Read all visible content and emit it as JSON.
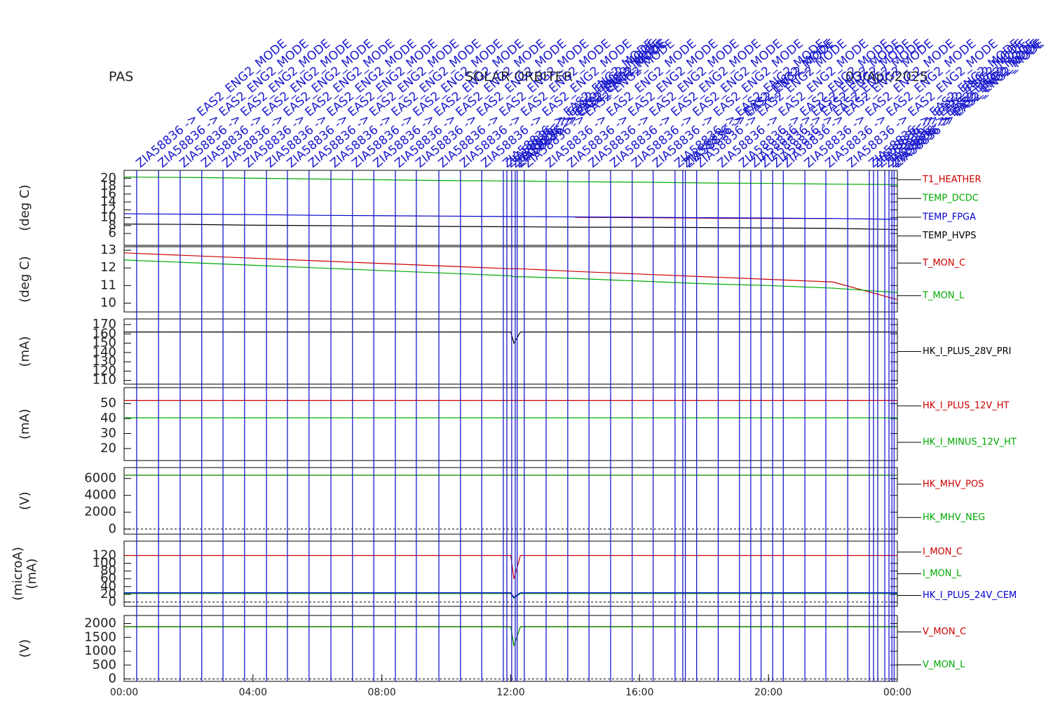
{
  "header": {
    "left": "PAS",
    "center": "SOLAR ORBITER",
    "right": "03/Apr/2025"
  },
  "events": {
    "color": "#1a1acc",
    "times": [
      0.39,
      1.07,
      1.74,
      2.41,
      3.07,
      3.74,
      4.42,
      5.07,
      5.74,
      6.42,
      7.09,
      7.75,
      8.42,
      9.07,
      9.77,
      10.44,
      11.1,
      11.77,
      11.88,
      12.03,
      12.14,
      12.2,
      12.42,
      13.1,
      13.77,
      14.43,
      15.1,
      15.77,
      16.42,
      17.1,
      17.34,
      17.42,
      17.77,
      18.44,
      19.1,
      19.45,
      19.77,
      20.13,
      20.46,
      21.13,
      21.78,
      22.46,
      23.13,
      23.26,
      23.39,
      23.61,
      23.74,
      23.83,
      23.9
    ],
    "labels": [
      "ZIA58836 -> EAS2_ENG2_MODE",
      "ZIA58836 -> EAS2_ENG2_MODE",
      "ZIA58836 -> EAS2_ENG2_MODE",
      "ZIA58836 -> EAS2_ENG2_MODE",
      "ZIA58836 -> EAS2_ENG2_MODE",
      "ZIA58836 -> EAS2_ENG2_MODE",
      "ZIA58836 -> EAS2_ENG2_MODE",
      "ZIA58836 -> EAS2_ENG2_MODE",
      "ZIA58836 -> EAS2_ENG2_MODE",
      "ZIA58836 -> EAS2_ENG2_MODE",
      "ZIA58836 -> EAS2_ENG2_MODE",
      "ZIA58836 -> EAS2_ENG2_MODE",
      "ZIA58836 -> EAS2_ENG2_MODE",
      "ZIA58836 -> EAS2_ENG2_MODE",
      "ZIA58836 -> EAS2_ENG2_MODE",
      "ZIA58836 -> EAS2_ENG2_MODE",
      "ZIA58836 -> EAS2_ENG2_MODE",
      "ZIA58836 -> EAS2_ENG2_MODE",
      "ZIA58836 -> EAS2_ENG2_MODE",
      "ZIA58836 -> EAS2_ENG2_MODE",
      "ZIA58836 -> EAS2_ENG2_MODE",
      "ZIA58836 -> EAS2_ENG2_MODE",
      "ZIA58836 -> EAS2_ENG2_MODE",
      "ZIA58836 -> EAS2_ENG2_MODE",
      "ZIA58836 -> EAS2_ENG2_MODE",
      "ZIA58836 -> EAS2_ENG2_MODE",
      "ZIA58836 -> EAS2_ENG2_MODE",
      "ZIA58836 -> EAS2_ENG2_MODE",
      "ZIA58836 -> EAS2_ENG2_MODE",
      "ZIA58836 -> EAS2_ENG2_MODE",
      "ZIA58836 -> EAS2_ENG2_MODE",
      "ZIA58836 -> EAS2_ENG2_MODE",
      "ZIA58836 -> EAS2_ENG2_MODE",
      "ZIA58836 -> EAS2_ENG2_MODE",
      "ZIA58836 -> EAS2_ENG2_MODE",
      "ZIA58836 -> EAS2_ENG2_MODE",
      "ZIA58836 -> EAS2_ENG2_MODE",
      "ZIA58836 -> EAS2_ENG2_MODE",
      "ZIA58836 -> EAS2_ENG2_MODE",
      "ZIA58836 -> EAS2_ENG2_MODE",
      "ZIA58836 -> EAS2_ENG2_MODE",
      "ZIA58836 -> EAS2_ENG2_MODE",
      "ZIA58836 -> EAS2_ENG2_MODE",
      "ZIA58836 -> EAS2_ENG2_MODE",
      "ZIA58836 -> EAS2_ENG2_MODE",
      "ZIA58836 -> EAS2_ENG2_MODE",
      "ZIA58836 -> EAS2_ENG2_MODE",
      "ZIA58836 -> EAS2_ENG2_MODE",
      "ZIA58836 -> EAS2_ENG2_MODE"
    ]
  },
  "chart_data": [
    {
      "type": "line",
      "ylabel": "(deg C)",
      "xlim": [
        0,
        24
      ],
      "ylim": [
        3,
        22
      ],
      "yticks": [
        6,
        8,
        10,
        12,
        14,
        16,
        18,
        20
      ],
      "x": [
        0,
        2,
        4,
        6,
        8,
        10,
        12,
        12.1,
        12.3,
        14,
        16,
        18,
        20,
        22,
        24
      ],
      "series": [
        {
          "name": "T1_HEATHER",
          "color": "#cc0000",
          "values": [
            null,
            null,
            null,
            null,
            null,
            null,
            null,
            null,
            null,
            10.1,
            10.0,
            9.9,
            9.8,
            9.8,
            null
          ]
        },
        {
          "name": "TEMP_DCDC",
          "color": "#00aa00",
          "values": [
            20.3,
            20.2,
            20.0,
            19.8,
            19.6,
            19.4,
            19.3,
            19.3,
            19.3,
            19.1,
            19.0,
            18.8,
            18.7,
            18.5,
            18.4
          ]
        },
        {
          "name": "TEMP_FPGA",
          "color": "#0000cc",
          "values": [
            11.0,
            10.9,
            10.8,
            10.6,
            10.5,
            10.4,
            10.3,
            10.3,
            10.3,
            10.2,
            10.1,
            10.0,
            9.9,
            9.8,
            9.6
          ]
        },
        {
          "name": "TEMP_HVPS",
          "color": "#000000",
          "values": [
            8.4,
            8.3,
            8.1,
            8.0,
            7.9,
            7.8,
            7.7,
            7.7,
            7.7,
            7.6,
            7.6,
            7.5,
            7.4,
            7.3,
            7.0
          ]
        }
      ]
    },
    {
      "type": "line",
      "ylabel": "(deg C)",
      "xlim": [
        0,
        24
      ],
      "ylim": [
        9.5,
        13.2
      ],
      "yticks": [
        10,
        11,
        12,
        13
      ],
      "x": [
        0,
        2,
        4,
        6,
        8,
        10,
        12,
        12.1,
        12.3,
        14,
        16,
        18,
        20,
        22,
        24
      ],
      "series": [
        {
          "name": "T_MON_C",
          "color": "#cc0000",
          "values": [
            12.85,
            12.7,
            12.55,
            12.4,
            12.25,
            12.1,
            11.95,
            11.95,
            11.95,
            11.8,
            11.65,
            11.5,
            11.35,
            11.2,
            10.2
          ]
        },
        {
          "name": "T_MON_L",
          "color": "#00aa00",
          "values": [
            12.45,
            12.3,
            12.15,
            12.0,
            11.85,
            11.7,
            11.55,
            11.5,
            11.5,
            11.4,
            11.25,
            11.1,
            11.0,
            10.85,
            10.6
          ]
        }
      ]
    },
    {
      "type": "line",
      "ylabel": "(mA)",
      "xlim": [
        0,
        24
      ],
      "ylim": [
        106,
        176
      ],
      "yticks": [
        110,
        120,
        130,
        140,
        150,
        160,
        170
      ],
      "x": [
        0,
        2,
        4,
        6,
        8,
        10,
        12,
        12.1,
        12.3,
        14,
        16,
        18,
        20,
        22,
        24
      ],
      "series": [
        {
          "name": "HK_I_PLUS_28V_PRI",
          "color": "#000000",
          "values": [
            162,
            162,
            162,
            162,
            162,
            162,
            162,
            150,
            162,
            162,
            162,
            162,
            162,
            162,
            162
          ]
        }
      ]
    },
    {
      "type": "line",
      "ylabel": "(mA)",
      "xlim": [
        0,
        24
      ],
      "ylim": [
        12,
        60.6
      ],
      "yticks": [
        20,
        30,
        40,
        50
      ],
      "x": [
        0,
        2,
        4,
        6,
        8,
        10,
        12,
        12.1,
        12.3,
        14,
        16,
        18,
        20,
        22,
        24
      ],
      "series": [
        {
          "name": "HK_I_PLUS_12V_HT",
          "color": "#cc0000",
          "values": [
            52,
            52,
            52,
            52,
            52,
            52,
            52,
            52,
            52,
            52,
            52,
            52,
            52,
            52,
            52
          ]
        },
        {
          "name": "HK_I_MINUS_12V_HT",
          "color": "#00aa00",
          "values": [
            40.5,
            40.5,
            40.5,
            40.5,
            40.5,
            40.5,
            40.5,
            40.5,
            40.5,
            40.5,
            40.5,
            40.5,
            40.5,
            40.5,
            40.5
          ]
        }
      ]
    },
    {
      "type": "line",
      "ylabel": "(V)",
      "xlim": [
        0,
        24
      ],
      "ylim": [
        -600,
        7300
      ],
      "yticks": [
        0,
        2000,
        4000,
        6000
      ],
      "zero_line": true,
      "x": [
        0,
        2,
        4,
        6,
        8,
        10,
        12,
        12.1,
        12.3,
        14,
        16,
        18,
        20,
        22,
        24
      ],
      "series": [
        {
          "name": "HK_MHV_POS",
          "color": "#cc0000",
          "values": [
            6400,
            6400,
            6400,
            6400,
            6400,
            6400,
            6400,
            6400,
            6400,
            6400,
            6400,
            6400,
            6400,
            6400,
            6400
          ]
        },
        {
          "name": "HK_MHV_NEG",
          "color": "#00aa00",
          "values": [
            6380,
            6380,
            6380,
            6380,
            6380,
            6380,
            6380,
            6380,
            6380,
            6380,
            6380,
            6380,
            6380,
            6380,
            6380
          ]
        }
      ]
    },
    {
      "type": "line",
      "ylabel": [
        "(microA)",
        "(mA)"
      ],
      "xlim": [
        0,
        24
      ],
      "ylim": [
        -11,
        157
      ],
      "yticks": [
        0,
        20,
        40,
        60,
        80,
        100,
        120
      ],
      "zero_line": true,
      "x": [
        0,
        2,
        4,
        6,
        8,
        10,
        12,
        12.1,
        12.3,
        14,
        16,
        18,
        20,
        22,
        24
      ],
      "series": [
        {
          "name": "I_MON_C",
          "color": "#cc0000",
          "values": [
            120,
            120,
            120,
            120,
            120,
            120,
            120,
            60,
            120,
            120,
            120,
            120,
            120,
            120,
            120
          ]
        },
        {
          "name": "I_MON_L",
          "color": "#00aa00",
          "values": [
            22,
            22,
            22,
            22,
            22,
            22,
            22,
            10,
            22,
            22,
            22,
            22,
            22,
            22,
            22
          ]
        },
        {
          "name": "HK_I_PLUS_24V_CEM",
          "color": "#0000cc",
          "values": [
            24,
            24,
            24,
            24,
            24,
            24,
            24,
            12,
            24,
            24,
            24,
            24,
            24,
            24,
            24
          ]
        }
      ]
    },
    {
      "type": "line",
      "ylabel": "(V)",
      "xlim": [
        0,
        24
      ],
      "ylim": [
        -86,
        2290
      ],
      "yticks": [
        0,
        500,
        1000,
        1500,
        2000
      ],
      "zero_line": true,
      "x": [
        0,
        2,
        4,
        6,
        8,
        10,
        12,
        12.1,
        12.3,
        14,
        16,
        18,
        20,
        22,
        24
      ],
      "xticks": [
        {
          "value": 0,
          "label": "00:00"
        },
        {
          "value": 4,
          "label": "04:00"
        },
        {
          "value": 8,
          "label": "08:00"
        },
        {
          "value": 12,
          "label": "12:00"
        },
        {
          "value": 16,
          "label": "16:00"
        },
        {
          "value": 20,
          "label": "20:00"
        },
        {
          "value": 24,
          "label": "00:00"
        }
      ],
      "series": [
        {
          "name": "V_MON_C",
          "color": "#cc0000",
          "values": [
            1890,
            1890,
            1890,
            1890,
            1890,
            1890,
            1890,
            1200,
            1890,
            1890,
            1890,
            1890,
            1890,
            1890,
            1890
          ]
        },
        {
          "name": "V_MON_L",
          "color": "#00aa00",
          "values": [
            1880,
            1880,
            1880,
            1880,
            1880,
            1880,
            1880,
            1190,
            1880,
            1880,
            1880,
            1880,
            1880,
            1880,
            1880
          ]
        }
      ]
    }
  ]
}
